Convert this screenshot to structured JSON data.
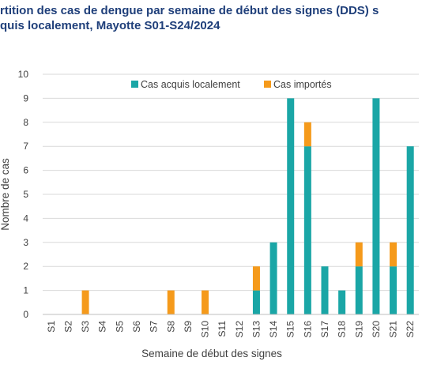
{
  "chart_data": {
    "type": "bar",
    "stacked": true,
    "title_lines": [
      "rtition des cas de dengue par semaine de début des signes (DDS) s",
      "quis localement, Mayotte S01-S24/2024"
    ],
    "xlabel": "Semaine de début des signes",
    "ylabel": "Nombre de cas",
    "ylim": [
      0,
      10
    ],
    "yticks": [
      0,
      1,
      2,
      3,
      4,
      5,
      6,
      7,
      8,
      9,
      10
    ],
    "grid": true,
    "legend_position": "top-center",
    "categories": [
      "S1",
      "S2",
      "S3",
      "S4",
      "S5",
      "S6",
      "S7",
      "S8",
      "S9",
      "S10",
      "S11",
      "S12",
      "S13",
      "S14",
      "S15",
      "S16",
      "S17",
      "S18",
      "S19",
      "S20",
      "S21",
      "S22"
    ],
    "series": [
      {
        "name": "Cas acquis localement",
        "color": "#1aa6a6",
        "values": [
          0,
          0,
          0,
          0,
          0,
          0,
          0,
          0,
          0,
          0,
          0,
          0,
          1,
          3,
          9,
          7,
          2,
          1,
          2,
          9,
          2,
          7
        ]
      },
      {
        "name": "Cas importés",
        "color": "#f59a1b",
        "values": [
          0,
          0,
          1,
          0,
          0,
          0,
          0,
          1,
          0,
          1,
          0,
          0,
          1,
          0,
          0,
          1,
          0,
          0,
          1,
          0,
          1,
          0
        ]
      }
    ]
  }
}
